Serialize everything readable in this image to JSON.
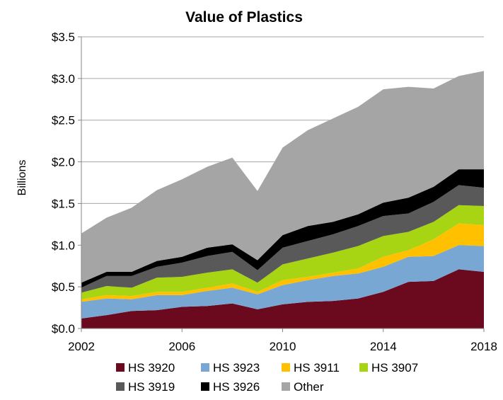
{
  "chart_data": {
    "type": "area",
    "stacked": true,
    "title": "Value of Plastics",
    "ylabel": "Billions",
    "xlabel": "",
    "xlim": [
      2002,
      2018
    ],
    "ylim": [
      0,
      3.5
    ],
    "x_ticks": [
      "2002",
      "2006",
      "2010",
      "2014",
      "2018"
    ],
    "y_ticks": [
      "$0.0",
      "$0.5",
      "$1.0",
      "$1.5",
      "$2.0",
      "$2.5",
      "$3.0",
      "$3.5"
    ],
    "grid": "horizontal",
    "legend_position": "bottom",
    "x": [
      2002,
      2003,
      2004,
      2005,
      2006,
      2007,
      2008,
      2009,
      2010,
      2011,
      2012,
      2013,
      2014,
      2015,
      2016,
      2017,
      2018
    ],
    "series": [
      {
        "name": "HS 3920",
        "color": "#6b0a1e",
        "values": [
          0.12,
          0.16,
          0.21,
          0.22,
          0.26,
          0.27,
          0.3,
          0.23,
          0.29,
          0.32,
          0.33,
          0.36,
          0.44,
          0.56,
          0.57,
          0.71,
          0.68
        ]
      },
      {
        "name": "HS 3923",
        "color": "#79a7d3",
        "values": [
          0.2,
          0.2,
          0.14,
          0.18,
          0.14,
          0.18,
          0.19,
          0.18,
          0.23,
          0.26,
          0.3,
          0.3,
          0.3,
          0.3,
          0.3,
          0.29,
          0.31
        ]
      },
      {
        "name": "HS 3911",
        "color": "#ffc000",
        "values": [
          0.03,
          0.04,
          0.04,
          0.04,
          0.04,
          0.04,
          0.05,
          0.03,
          0.06,
          0.04,
          0.04,
          0.06,
          0.12,
          0.08,
          0.2,
          0.26,
          0.25
        ]
      },
      {
        "name": "HS 3907",
        "color": "#a7d514",
        "values": [
          0.08,
          0.11,
          0.1,
          0.17,
          0.18,
          0.18,
          0.17,
          0.11,
          0.19,
          0.22,
          0.24,
          0.27,
          0.25,
          0.22,
          0.21,
          0.22,
          0.23
        ]
      },
      {
        "name": "HS 3919",
        "color": "#595959",
        "values": [
          0.06,
          0.12,
          0.14,
          0.13,
          0.17,
          0.2,
          0.21,
          0.15,
          0.2,
          0.21,
          0.22,
          0.24,
          0.24,
          0.22,
          0.24,
          0.24,
          0.22
        ]
      },
      {
        "name": "HS 3926",
        "color": "#000000",
        "values": [
          0.06,
          0.05,
          0.05,
          0.07,
          0.07,
          0.1,
          0.09,
          0.12,
          0.15,
          0.18,
          0.15,
          0.14,
          0.16,
          0.19,
          0.18,
          0.19,
          0.22
        ]
      },
      {
        "name": "Other",
        "color": "#a5a5a5",
        "values": [
          0.59,
          0.65,
          0.77,
          0.85,
          0.93,
          0.97,
          1.04,
          0.83,
          1.05,
          1.15,
          1.24,
          1.29,
          1.36,
          1.33,
          1.18,
          1.12,
          1.18
        ]
      }
    ]
  }
}
